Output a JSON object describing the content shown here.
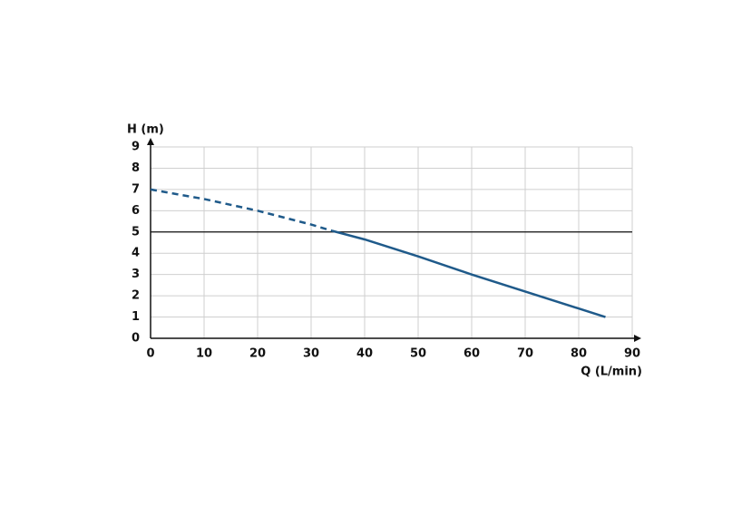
{
  "chart_data": {
    "type": "line",
    "y_label": "H (m)",
    "x_label": "Q (L/min)",
    "xlim": [
      0,
      90
    ],
    "xticks": [
      0,
      10,
      20,
      30,
      40,
      50,
      60,
      70,
      80,
      90
    ],
    "ylim": [
      0,
      9
    ],
    "yticks": [
      0,
      1,
      2,
      3,
      4,
      5,
      6,
      7,
      8,
      9
    ],
    "grid": true,
    "hlines": [
      5
    ],
    "series": [
      {
        "color": "#1f5a8a",
        "style": "dashed",
        "x": [
          0,
          10,
          20,
          30,
          34
        ],
        "values": [
          7,
          6.55,
          6,
          5.35,
          5.05
        ]
      },
      {
        "color": "#1f5a8a",
        "style": "solid",
        "x": [
          34,
          40,
          50,
          60,
          70,
          85
        ],
        "values": [
          5.05,
          4.65,
          3.85,
          3.0,
          2.2,
          1.0
        ]
      }
    ]
  }
}
